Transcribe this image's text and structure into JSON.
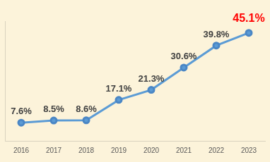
{
  "chart_data": {
    "type": "line",
    "categories": [
      "2016",
      "2017",
      "2018",
      "2019",
      "2020",
      "2021",
      "2022",
      "2023"
    ],
    "values": [
      7.6,
      8.5,
      8.6,
      17.1,
      21.3,
      30.6,
      39.8,
      45.1
    ],
    "value_labels": [
      "7.6%",
      "8.5%",
      "8.6%",
      "17.1%",
      "21.3%",
      "30.6%",
      "39.8%",
      "45.1%"
    ],
    "color": "#5b9bd5",
    "marker": "circle",
    "ylim": [
      0,
      50
    ],
    "grid": false,
    "data_labels": true,
    "tick_labels": "x"
  }
}
